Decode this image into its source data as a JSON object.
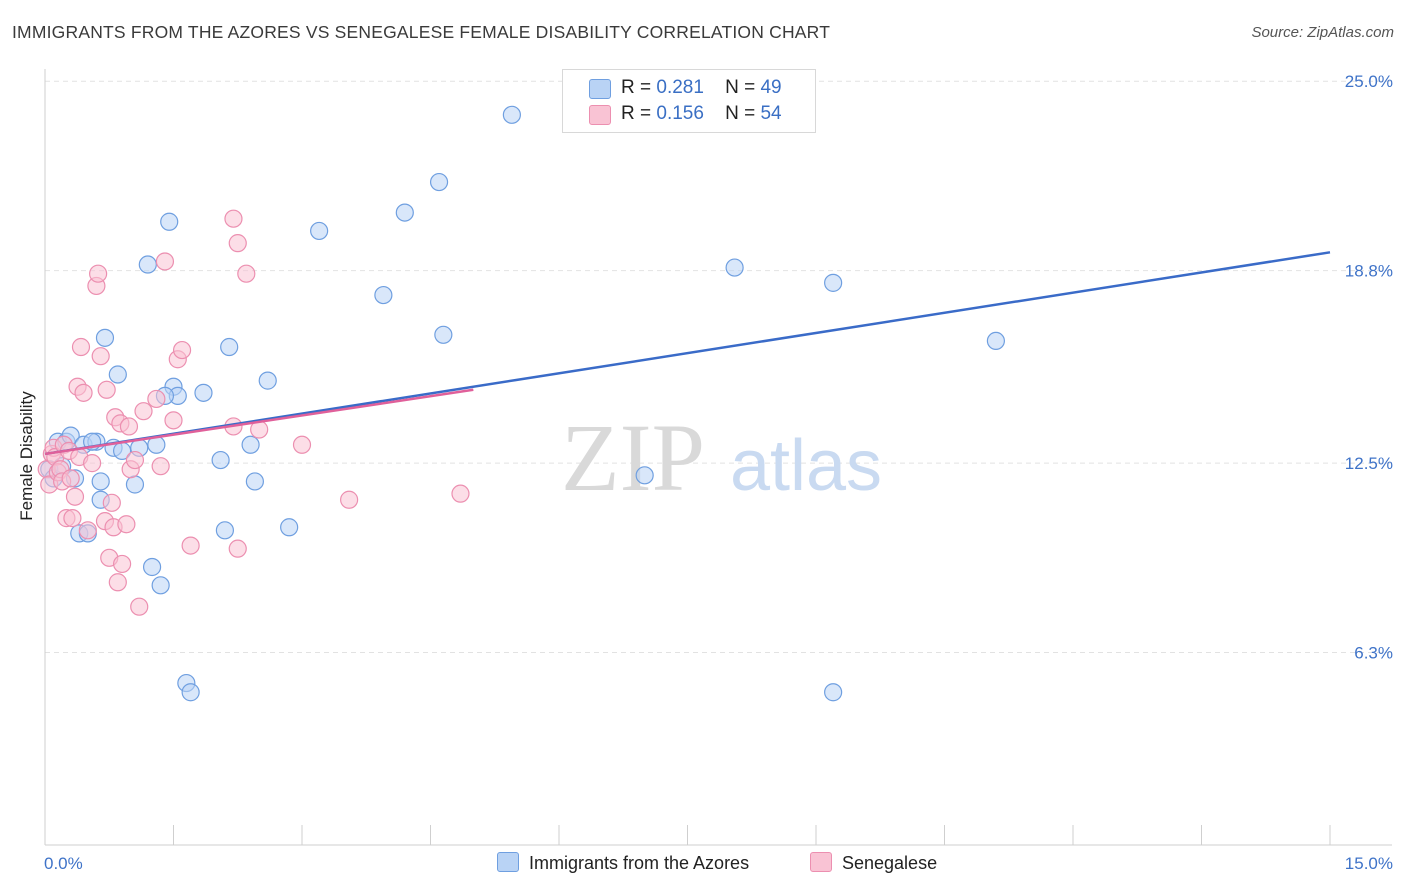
{
  "title": "IMMIGRANTS FROM THE AZORES VS SENEGALESE FEMALE DISABILITY CORRELATION CHART",
  "source": "Source: ZipAtlas.com",
  "watermark": {
    "zip": "ZIP",
    "atlas": "atlas"
  },
  "legend": {
    "rows": [
      {
        "r_label": "R =",
        "r_value": "0.281",
        "n_label": "N =",
        "n_value": "49"
      },
      {
        "r_label": "R =",
        "r_value": "0.156",
        "n_label": "N =",
        "n_value": "54"
      }
    ]
  },
  "chart_data": {
    "type": "scatter",
    "title": "IMMIGRANTS FROM THE AZORES VS SENEGALESE FEMALE DISABILITY CORRELATION CHART",
    "xlabel": "",
    "ylabel": "Female Disability",
    "xlim": [
      0,
      15
    ],
    "ylim": [
      0,
      25.4
    ],
    "x_tick_labels": [
      "0.0%",
      "15.0%"
    ],
    "y_ticks": [
      6.3,
      12.5,
      18.8,
      25.0
    ],
    "y_tick_labels": [
      "6.3%",
      "12.5%",
      "18.8%",
      "25.0%"
    ],
    "grid": true,
    "legend_position": "top-center",
    "colors": {
      "azores_fill": "#b9d3f5",
      "azores_stroke": "#6f9fe0",
      "azores_line": "#3a6bc8",
      "senegalese_fill": "#f9c3d4",
      "senegalese_stroke": "#ec8fb0",
      "senegalese_line": "#e0609a",
      "tick_label": "#3f73c8",
      "grid": "#e2e2e2"
    },
    "series": [
      {
        "name": "Immigrants from the Azores",
        "r": 0.281,
        "n": 49,
        "trend": {
          "x": [
            0.0,
            15.0
          ],
          "y": [
            12.8,
            19.4
          ]
        },
        "points": [
          [
            0.05,
            12.3
          ],
          [
            0.1,
            12.0
          ],
          [
            0.15,
            13.2
          ],
          [
            0.2,
            12.4
          ],
          [
            0.25,
            13.2
          ],
          [
            0.3,
            13.4
          ],
          [
            0.35,
            12.0
          ],
          [
            0.4,
            10.2
          ],
          [
            0.45,
            13.1
          ],
          [
            0.5,
            10.2
          ],
          [
            0.6,
            13.2
          ],
          [
            0.65,
            11.3
          ],
          [
            0.7,
            16.6
          ],
          [
            0.8,
            13.0
          ],
          [
            0.85,
            15.4
          ],
          [
            0.9,
            12.9
          ],
          [
            1.05,
            11.8
          ],
          [
            1.2,
            19.0
          ],
          [
            1.25,
            9.1
          ],
          [
            1.3,
            13.1
          ],
          [
            1.35,
            8.5
          ],
          [
            1.45,
            20.4
          ],
          [
            1.5,
            15.0
          ],
          [
            1.55,
            14.7
          ],
          [
            1.65,
            5.3
          ],
          [
            1.7,
            5.0
          ],
          [
            1.85,
            14.8
          ],
          [
            2.05,
            12.6
          ],
          [
            2.1,
            10.3
          ],
          [
            2.15,
            16.3
          ],
          [
            2.4,
            13.1
          ],
          [
            2.45,
            11.9
          ],
          [
            2.6,
            15.2
          ],
          [
            2.85,
            10.4
          ],
          [
            3.2,
            20.1
          ],
          [
            3.95,
            18.0
          ],
          [
            4.2,
            20.7
          ],
          [
            4.6,
            21.7
          ],
          [
            4.65,
            16.7
          ],
          [
            5.45,
            23.9
          ],
          [
            7.0,
            12.1
          ],
          [
            8.05,
            18.9
          ],
          [
            9.2,
            18.4
          ],
          [
            9.2,
            5.0
          ],
          [
            11.1,
            16.5
          ],
          [
            0.65,
            11.9
          ],
          [
            1.1,
            13.0
          ],
          [
            0.55,
            13.2
          ],
          [
            1.4,
            14.7
          ]
        ]
      },
      {
        "name": "Senegalese",
        "r": 0.156,
        "n": 54,
        "trend": {
          "x": [
            0.0,
            5.0
          ],
          "y": [
            12.8,
            14.9
          ]
        },
        "points": [
          [
            0.02,
            12.3
          ],
          [
            0.05,
            11.8
          ],
          [
            0.08,
            12.8
          ],
          [
            0.1,
            13.0
          ],
          [
            0.12,
            12.7
          ],
          [
            0.15,
            12.2
          ],
          [
            0.18,
            12.3
          ],
          [
            0.2,
            11.9
          ],
          [
            0.22,
            13.1
          ],
          [
            0.25,
            10.7
          ],
          [
            0.28,
            12.9
          ],
          [
            0.3,
            12.0
          ],
          [
            0.32,
            10.7
          ],
          [
            0.35,
            11.4
          ],
          [
            0.38,
            15.0
          ],
          [
            0.4,
            12.7
          ],
          [
            0.42,
            16.3
          ],
          [
            0.45,
            14.8
          ],
          [
            0.5,
            10.3
          ],
          [
            0.55,
            12.5
          ],
          [
            0.6,
            18.3
          ],
          [
            0.62,
            18.7
          ],
          [
            0.65,
            16.0
          ],
          [
            0.7,
            10.6
          ],
          [
            0.72,
            14.9
          ],
          [
            0.75,
            9.4
          ],
          [
            0.78,
            11.2
          ],
          [
            0.8,
            10.4
          ],
          [
            0.82,
            14.0
          ],
          [
            0.85,
            8.6
          ],
          [
            0.88,
            13.8
          ],
          [
            0.9,
            9.2
          ],
          [
            0.95,
            10.5
          ],
          [
            0.98,
            13.7
          ],
          [
            1.0,
            12.3
          ],
          [
            1.05,
            12.6
          ],
          [
            1.1,
            7.8
          ],
          [
            1.15,
            14.2
          ],
          [
            1.3,
            14.6
          ],
          [
            1.35,
            12.4
          ],
          [
            1.4,
            19.1
          ],
          [
            1.5,
            13.9
          ],
          [
            1.55,
            15.9
          ],
          [
            1.6,
            16.2
          ],
          [
            1.7,
            9.8
          ],
          [
            2.2,
            20.5
          ],
          [
            2.25,
            9.7
          ],
          [
            2.2,
            13.7
          ],
          [
            2.25,
            19.7
          ],
          [
            2.35,
            18.7
          ],
          [
            2.5,
            13.6
          ],
          [
            3.0,
            13.1
          ],
          [
            3.55,
            11.3
          ],
          [
            4.85,
            11.5
          ]
        ]
      }
    ]
  },
  "bottom_legend": [
    {
      "label": "Immigrants from the Azores"
    },
    {
      "label": "Senegalese"
    }
  ]
}
